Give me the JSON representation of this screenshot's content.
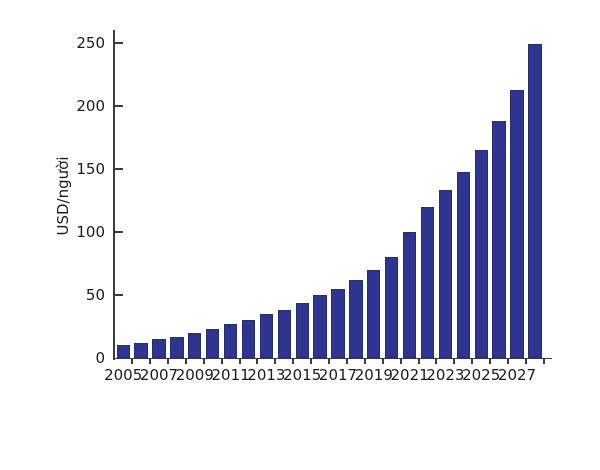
{
  "chart_data": {
    "type": "bar",
    "title": "",
    "xlabel": "",
    "ylabel": "USD/người",
    "categories": [
      2005,
      2006,
      2007,
      2008,
      2009,
      2010,
      2011,
      2012,
      2013,
      2014,
      2015,
      2016,
      2017,
      2018,
      2019,
      2020,
      2021,
      2022,
      2023,
      2024,
      2025,
      2026,
      2027,
      2028
    ],
    "values": [
      10,
      12,
      15,
      17,
      20,
      23,
      27,
      30,
      35,
      38,
      44,
      50,
      55,
      62,
      70,
      80,
      100,
      120,
      133,
      148,
      165,
      188,
      213,
      249
    ],
    "x_tick_labels_shown": [
      "2005",
      "2007",
      "2009",
      "2011",
      "2013",
      "2015",
      "2017",
      "2019",
      "2021",
      "2023",
      "2025",
      "2027"
    ],
    "x_tick_label_step": 2,
    "ylim": [
      0,
      250
    ],
    "yticks": [
      0,
      50,
      100,
      150,
      200,
      250
    ],
    "grid": false,
    "legend": false,
    "bar_color": "#2e3591",
    "bar_border_color": "#272d77",
    "axis_color": "#3c3c3c",
    "text_color": "#1c1c1c",
    "background_color": "#ffffff"
  }
}
